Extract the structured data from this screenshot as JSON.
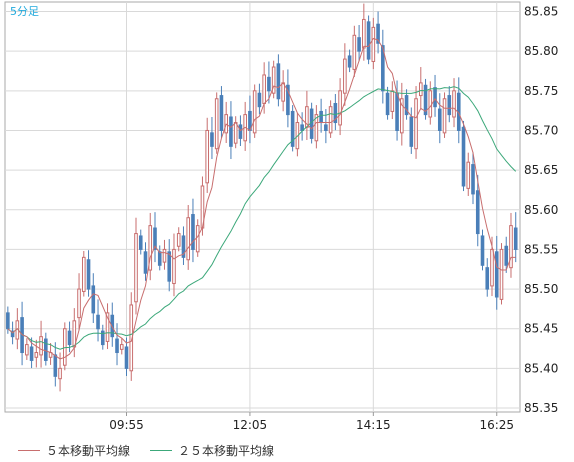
{
  "chart_data": {
    "type": "candlestick",
    "timeframe_label": "5分足",
    "x_tick_labels": [
      {
        "idx": 25,
        "label": "09:55"
      },
      {
        "idx": 51,
        "label": "12:05"
      },
      {
        "idx": 77,
        "label": "14:15"
      },
      {
        "idx": 103,
        "label": "16:25"
      }
    ],
    "y_ticks": [
      85.35,
      85.4,
      85.45,
      85.5,
      85.55,
      85.6,
      85.65,
      85.7,
      85.75,
      85.8,
      85.85
    ],
    "ylim": [
      85.345,
      85.862
    ],
    "legend": [
      {
        "name": "５本移動平均線",
        "color": "#c86e6e"
      },
      {
        "name": "２５本移動平均線",
        "color": "#3ca87a"
      }
    ],
    "colors": {
      "up": "#c86e6e",
      "down": "#4a7fb8",
      "label": "#22aadd",
      "grid": "#d9d9d9"
    },
    "closes": [
      85.45,
      85.44,
      85.46,
      85.42,
      85.43,
      85.41,
      85.42,
      85.44,
      85.41,
      85.42,
      85.39,
      85.4,
      85.45,
      85.43,
      85.46,
      85.5,
      85.54,
      85.5,
      85.47,
      85.45,
      85.43,
      85.47,
      85.44,
      85.42,
      85.43,
      85.4,
      85.48,
      85.57,
      85.55,
      85.52,
      85.58,
      85.55,
      85.53,
      85.55,
      85.51,
      85.55,
      85.57,
      85.54,
      85.59,
      85.55,
      85.58,
      85.63,
      85.7,
      85.68,
      85.74,
      85.7,
      85.72,
      85.68,
      85.71,
      85.69,
      85.72,
      85.7,
      85.75,
      85.73,
      85.77,
      85.75,
      85.78,
      85.74,
      85.76,
      85.72,
      85.68,
      85.71,
      85.7,
      85.73,
      85.69,
      85.72,
      85.71,
      85.7,
      85.73,
      85.71,
      85.75,
      85.79,
      85.78,
      85.82,
      85.8,
      85.84,
      85.79,
      85.83,
      85.81,
      85.75,
      85.72,
      85.75,
      85.7,
      85.74,
      85.72,
      85.68,
      85.74,
      85.76,
      85.72,
      85.75,
      85.73,
      85.7,
      85.74,
      85.72,
      85.75,
      85.7,
      85.63,
      85.66,
      85.62,
      85.57,
      85.53,
      85.5,
      85.55,
      85.49,
      85.55,
      85.53,
      85.58,
      85.55
    ]
  }
}
